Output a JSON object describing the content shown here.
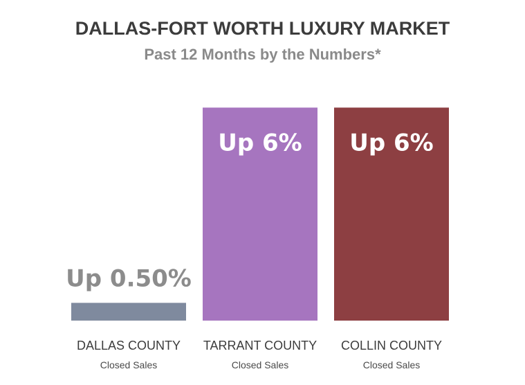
{
  "chart_data": {
    "type": "bar",
    "title": "DALLAS-FORT WORTH LUXURY MARKET",
    "subtitle": "Past 12 Months by the Numbers*",
    "categories": [
      "DALLAS COUNTY",
      "TARRANT COUNTY",
      "COLLIN COUNTY"
    ],
    "category_sublabels": [
      "Closed Sales",
      "Closed Sales",
      "Closed Sales"
    ],
    "values": [
      0.5,
      6,
      6
    ],
    "value_unit": "%",
    "data_labels": [
      "Up 0.50%",
      "Up 6%",
      "Up 6%"
    ],
    "ylim": [
      0,
      6.3
    ],
    "grid": false,
    "legend": "none",
    "colors": [
      "#7f8a9e",
      "#a675bf",
      "#8d3f42"
    ],
    "label_colors": [
      "#8c8c8c",
      "#ffffff",
      "#ffffff"
    ]
  }
}
